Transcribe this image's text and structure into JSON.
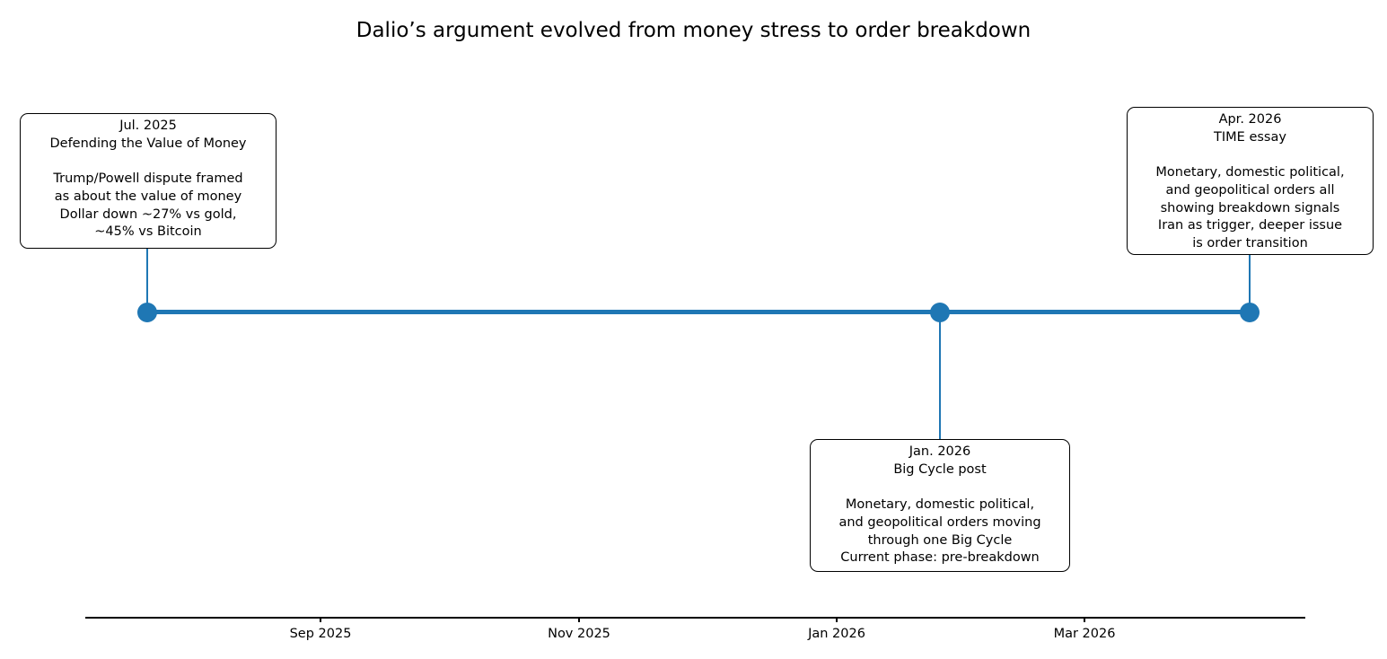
{
  "figure": {
    "title": "Dalio’s argument evolved from money stress to order breakdown"
  },
  "colors": {
    "timeline_accent": "#1f77b4",
    "box_border": "#000000",
    "axis_line": "#000000",
    "text": "#000000",
    "background": "#ffffff"
  },
  "chart_data": {
    "type": "timeline",
    "title": "Dalio’s argument evolved from money stress to order breakdown",
    "x_axis": {
      "tick_labels": [
        "Sep 2025",
        "Nov 2025",
        "Jan 2026",
        "Mar 2026"
      ],
      "range": [
        "Jul 2025",
        "Apr 2026"
      ],
      "grid": false
    },
    "legend": "none",
    "events": [
      {
        "date": "Jul. 2025",
        "label": "Defending the Value of Money",
        "details": "Trump/Powell dispute framed\nas about the value of money\nDollar down ~27% vs gold,\n~45% vs Bitcoin",
        "box_position": "above"
      },
      {
        "date": "Jan. 2026",
        "label": "Big Cycle post",
        "details": "Monetary, domestic political,\nand geopolitical orders moving\nthrough one Big Cycle\nCurrent phase: pre-breakdown",
        "box_position": "below"
      },
      {
        "date": "Apr. 2026",
        "label": "TIME essay",
        "details": "Monetary, domestic political,\nand geopolitical orders all\nshowing breakdown signals\nIran as trigger, deeper issue\nis order transition",
        "box_position": "above"
      }
    ]
  }
}
